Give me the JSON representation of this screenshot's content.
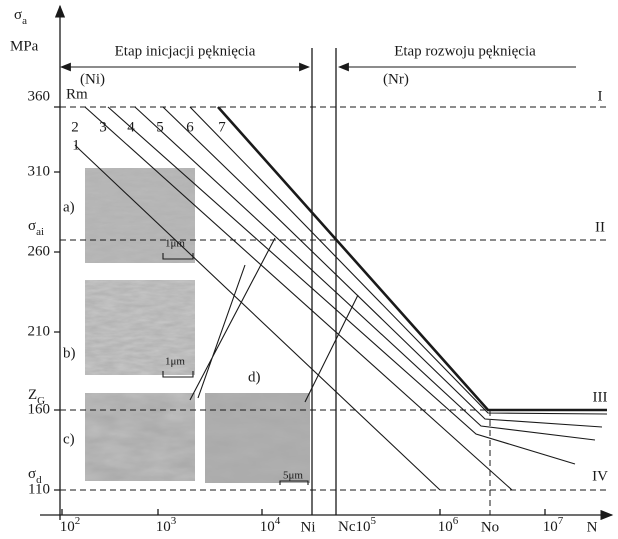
{
  "y_axis": {
    "symbol": "σ",
    "sub": "a",
    "unit": "MPa",
    "ticks": [
      "360",
      "310",
      "260",
      "210",
      "160",
      "110"
    ]
  },
  "x_axis": {
    "label": "N",
    "powers": [
      {
        "base": "10",
        "exp": "2"
      },
      {
        "base": "10",
        "exp": "3"
      },
      {
        "base": "10",
        "exp": "4"
      },
      {
        "base": "10",
        "exp": "6"
      },
      {
        "base": "10",
        "exp": "7"
      }
    ],
    "ni": "Ni",
    "nc": {
      "label": "Nc",
      "base": "10",
      "exp": "5"
    },
    "no": "No"
  },
  "stages": [
    {
      "title": "Etap inicjacji pęknięcia",
      "sym": "(Ni)"
    },
    {
      "title": "Etap rozwoju pęknięcia",
      "sym": "(Nr)"
    }
  ],
  "levels": {
    "rm": "Rm",
    "sai": {
      "symbol": "σ",
      "sub": "ai"
    },
    "zg": {
      "symbol": "Z",
      "sub": "G"
    },
    "sd": {
      "symbol": "σ",
      "sub": "d"
    },
    "roman": [
      "I",
      "II",
      "III",
      "IV"
    ]
  },
  "curves": [
    "1",
    "2",
    "3",
    "4",
    "5",
    "6",
    "7"
  ],
  "photos": [
    {
      "label": "a)",
      "scale": "1μm"
    },
    {
      "label": "b)",
      "scale": "1μm"
    },
    {
      "label": "c)"
    },
    {
      "label": "d)",
      "scale": "5μm"
    }
  ]
}
